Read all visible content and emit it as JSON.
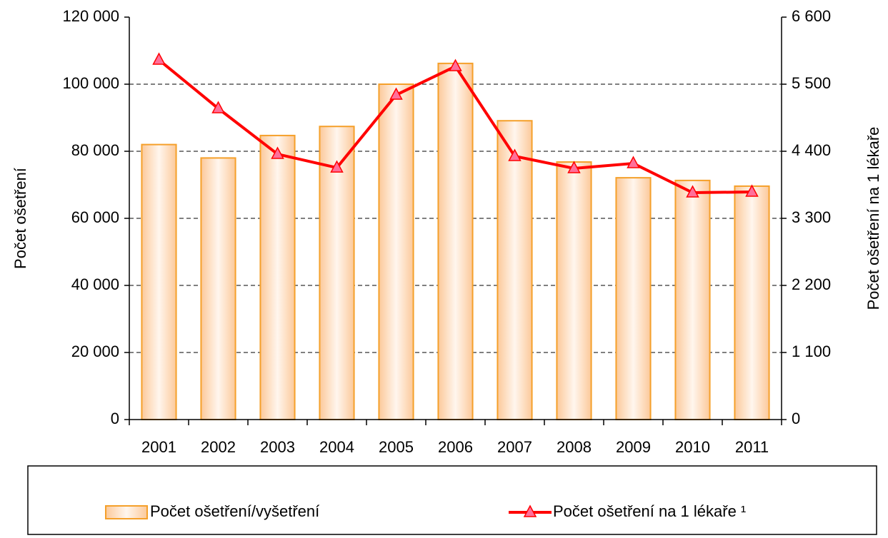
{
  "chart_data": {
    "type": "bar_line",
    "categories": [
      "2001",
      "2002",
      "2003",
      "2004",
      "2005",
      "2006",
      "2007",
      "2008",
      "2009",
      "2010",
      "2011"
    ],
    "ylabel": "Počet ošetření",
    "y2label": "Počet ošetření na 1 lékaře",
    "ylim": [
      0,
      120000
    ],
    "yticks": [
      0,
      {
        "value": 20000,
        "label": "20 000"
      },
      {
        "value": 40000,
        "label": "40 000"
      },
      {
        "value": 60000,
        "label": "60 000"
      },
      {
        "value": 80000,
        "label": "80 000"
      },
      {
        "value": 100000,
        "label": "100 000"
      },
      {
        "value": 120000,
        "label": "120 000"
      }
    ],
    "y2lim": [
      0,
      6600
    ],
    "y2ticks": [
      0,
      {
        "value": 1100,
        "label": "1 100"
      },
      {
        "value": 2200,
        "label": "2 200"
      },
      {
        "value": 3300,
        "label": "3 300"
      },
      {
        "value": 4400,
        "label": "4 400"
      },
      {
        "value": 5500,
        "label": "5 500"
      },
      {
        "value": 6600,
        "label": "6 600"
      }
    ],
    "grid": true,
    "legend": "bottom",
    "series": [
      {
        "name": "Počet ošetření/vyšetření",
        "type": "bar",
        "color": "#f5a02a",
        "values": [
          82000,
          78000,
          84700,
          87400,
          100000,
          106200,
          89100,
          76800,
          72100,
          71300,
          69600
        ]
      },
      {
        "name": "Počet ošetření na 1 lékaře ¹",
        "type": "line",
        "axis": "y2",
        "color": "#ff0000",
        "marker_color": "#ff6f9a",
        "values": [
          5898,
          5102,
          4353,
          4130,
          5324,
          5792,
          4318,
          4119,
          4201,
          3721,
          3733
        ]
      }
    ]
  }
}
